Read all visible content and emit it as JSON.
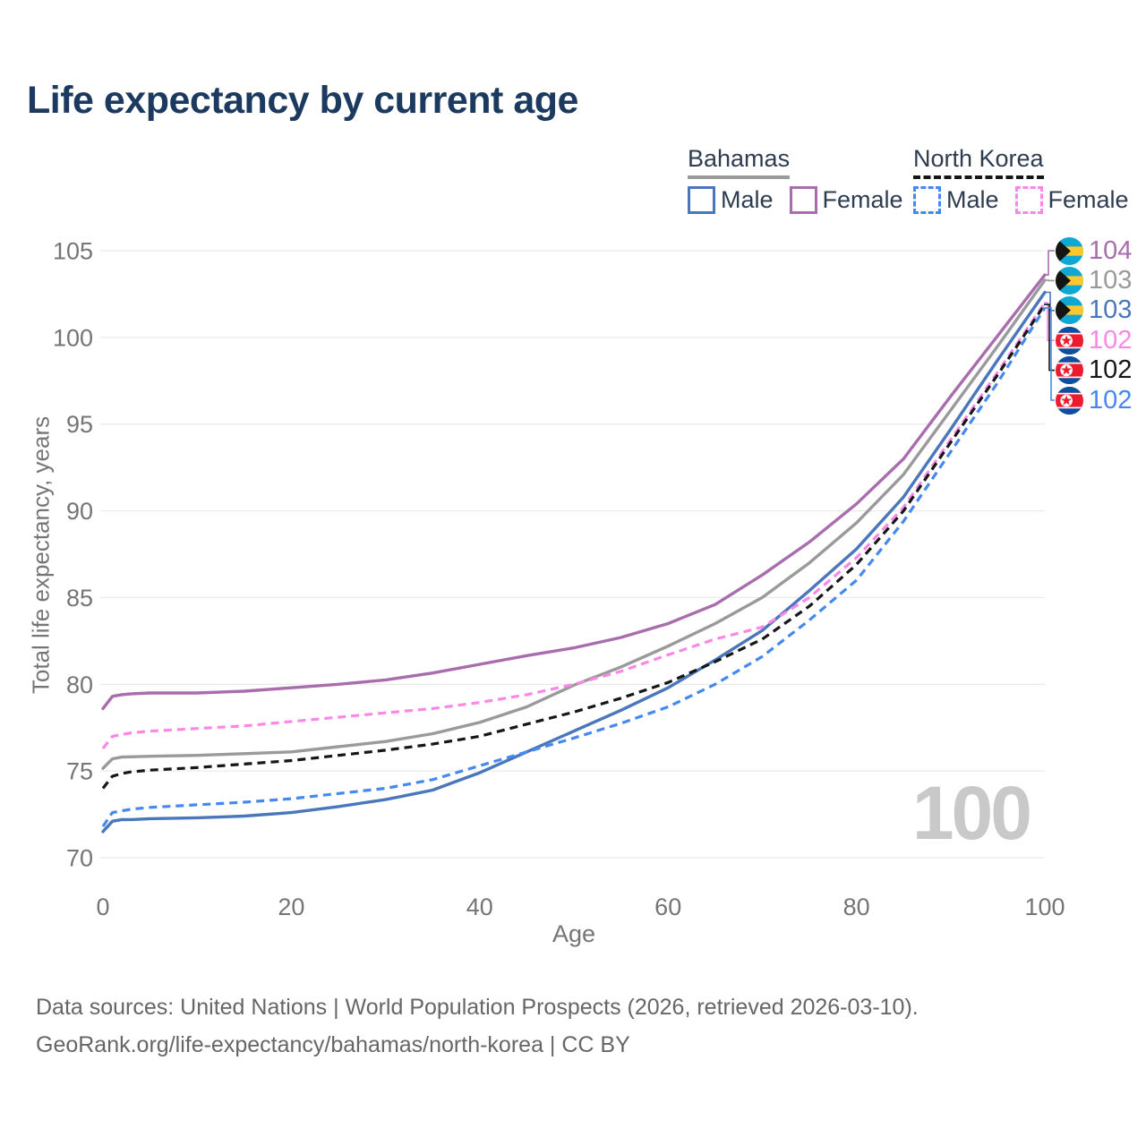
{
  "chart_data": {
    "type": "line",
    "title": "Life expectancy by current age",
    "xlabel": "Age",
    "ylabel": "Total life expectancy, years",
    "xlim": [
      0,
      100
    ],
    "ylim": [
      70,
      105
    ],
    "x_ticks": [
      0,
      20,
      40,
      60,
      80,
      100
    ],
    "y_ticks": [
      70,
      75,
      80,
      85,
      90,
      95,
      100,
      105
    ],
    "grid": "horizontal",
    "legend_position": "top-right",
    "watermark": "100",
    "series": [
      {
        "name": "Bahamas Female",
        "country": "Bahamas",
        "sex": "Female",
        "color": "#a96dae",
        "dash": false,
        "flag": "bahamas-flag-icon",
        "end_label": "104",
        "points": [
          [
            0,
            78.6
          ],
          [
            1,
            79.3
          ],
          [
            2,
            79.4
          ],
          [
            3,
            79.45
          ],
          [
            5,
            79.5
          ],
          [
            10,
            79.5
          ],
          [
            15,
            79.6
          ],
          [
            20,
            79.8
          ],
          [
            25,
            80.0
          ],
          [
            30,
            80.25
          ],
          [
            35,
            80.65
          ],
          [
            40,
            81.15
          ],
          [
            45,
            81.65
          ],
          [
            50,
            82.1
          ],
          [
            55,
            82.7
          ],
          [
            60,
            83.5
          ],
          [
            65,
            84.6
          ],
          [
            70,
            86.3
          ],
          [
            75,
            88.2
          ],
          [
            80,
            90.4
          ],
          [
            85,
            93.0
          ],
          [
            90,
            96.6
          ],
          [
            95,
            100.1
          ],
          [
            100,
            103.6
          ]
        ]
      },
      {
        "name": "Bahamas",
        "country": "Bahamas",
        "sex": "Both sexes",
        "color": "#9a9a9a",
        "dash": false,
        "flag": "bahamas-flag-icon",
        "end_label": "103",
        "points": [
          [
            0,
            75.15
          ],
          [
            1,
            75.7
          ],
          [
            2,
            75.8
          ],
          [
            3,
            75.82
          ],
          [
            5,
            75.85
          ],
          [
            10,
            75.9
          ],
          [
            15,
            76.0
          ],
          [
            20,
            76.1
          ],
          [
            25,
            76.4
          ],
          [
            30,
            76.7
          ],
          [
            35,
            77.15
          ],
          [
            40,
            77.8
          ],
          [
            45,
            78.7
          ],
          [
            50,
            79.95
          ],
          [
            55,
            81.0
          ],
          [
            60,
            82.2
          ],
          [
            65,
            83.5
          ],
          [
            70,
            85.0
          ],
          [
            75,
            87.0
          ],
          [
            80,
            89.3
          ],
          [
            85,
            92.1
          ],
          [
            90,
            95.8
          ],
          [
            95,
            99.5
          ],
          [
            100,
            103.3
          ]
        ]
      },
      {
        "name": "Bahamas Male",
        "country": "Bahamas",
        "sex": "Male",
        "color": "#4a77bb",
        "dash": false,
        "flag": "bahamas-flag-icon",
        "end_label": "103",
        "points": [
          [
            0,
            71.5
          ],
          [
            1,
            72.1
          ],
          [
            2,
            72.2
          ],
          [
            3,
            72.2
          ],
          [
            5,
            72.25
          ],
          [
            10,
            72.3
          ],
          [
            15,
            72.4
          ],
          [
            20,
            72.6
          ],
          [
            25,
            72.95
          ],
          [
            30,
            73.35
          ],
          [
            35,
            73.9
          ],
          [
            40,
            74.9
          ],
          [
            45,
            76.1
          ],
          [
            50,
            77.3
          ],
          [
            55,
            78.5
          ],
          [
            60,
            79.8
          ],
          [
            65,
            81.4
          ],
          [
            70,
            83.1
          ],
          [
            75,
            85.4
          ],
          [
            80,
            87.8
          ],
          [
            85,
            90.8
          ],
          [
            90,
            94.7
          ],
          [
            95,
            98.7
          ],
          [
            100,
            102.6
          ]
        ]
      },
      {
        "name": "North Korea Female",
        "country": "North Korea",
        "sex": "Female",
        "color": "#fb87e7",
        "dash": true,
        "flag": "north-korea-flag-icon",
        "end_label": "102",
        "points": [
          [
            0,
            76.3
          ],
          [
            1,
            77.0
          ],
          [
            2,
            77.1
          ],
          [
            3,
            77.2
          ],
          [
            5,
            77.3
          ],
          [
            10,
            77.45
          ],
          [
            15,
            77.6
          ],
          [
            20,
            77.85
          ],
          [
            25,
            78.1
          ],
          [
            30,
            78.35
          ],
          [
            35,
            78.6
          ],
          [
            40,
            78.95
          ],
          [
            45,
            79.4
          ],
          [
            50,
            80.0
          ],
          [
            55,
            80.75
          ],
          [
            60,
            81.7
          ],
          [
            65,
            82.6
          ],
          [
            70,
            83.3
          ],
          [
            75,
            85.0
          ],
          [
            80,
            87.3
          ],
          [
            85,
            90.2
          ],
          [
            90,
            94.1
          ],
          [
            95,
            98.0
          ],
          [
            100,
            102.0
          ]
        ]
      },
      {
        "name": "North Korea",
        "country": "North Korea",
        "sex": "Both sexes",
        "color": "#161616",
        "dash": true,
        "flag": "north-korea-flag-icon",
        "end_label": "102",
        "points": [
          [
            0,
            74.0
          ],
          [
            1,
            74.7
          ],
          [
            2,
            74.85
          ],
          [
            3,
            74.95
          ],
          [
            5,
            75.05
          ],
          [
            10,
            75.2
          ],
          [
            15,
            75.4
          ],
          [
            20,
            75.6
          ],
          [
            25,
            75.9
          ],
          [
            30,
            76.2
          ],
          [
            35,
            76.55
          ],
          [
            40,
            77.0
          ],
          [
            45,
            77.7
          ],
          [
            50,
            78.4
          ],
          [
            55,
            79.2
          ],
          [
            60,
            80.1
          ],
          [
            65,
            81.3
          ],
          [
            70,
            82.6
          ],
          [
            75,
            84.5
          ],
          [
            80,
            86.9
          ],
          [
            85,
            90.0
          ],
          [
            90,
            93.95
          ],
          [
            95,
            97.85
          ],
          [
            100,
            101.9
          ]
        ]
      },
      {
        "name": "North Korea Male",
        "country": "North Korea",
        "sex": "Male",
        "color": "#4488f0",
        "dash": true,
        "flag": "north-korea-flag-icon",
        "end_label": "102",
        "points": [
          [
            0,
            71.8
          ],
          [
            1,
            72.6
          ],
          [
            2,
            72.7
          ],
          [
            3,
            72.8
          ],
          [
            5,
            72.9
          ],
          [
            10,
            73.05
          ],
          [
            15,
            73.2
          ],
          [
            20,
            73.4
          ],
          [
            25,
            73.7
          ],
          [
            30,
            74.0
          ],
          [
            35,
            74.5
          ],
          [
            40,
            75.3
          ],
          [
            45,
            76.1
          ],
          [
            50,
            76.9
          ],
          [
            55,
            77.75
          ],
          [
            60,
            78.7
          ],
          [
            65,
            80.0
          ],
          [
            70,
            81.6
          ],
          [
            75,
            83.7
          ],
          [
            80,
            86.0
          ],
          [
            85,
            89.4
          ],
          [
            90,
            93.4
          ],
          [
            95,
            97.4
          ],
          [
            100,
            101.7
          ]
        ]
      }
    ]
  },
  "legend": {
    "groups": [
      {
        "name": "Bahamas",
        "items": [
          {
            "label": "Male"
          },
          {
            "label": "Female"
          }
        ]
      },
      {
        "name": "North Korea",
        "items": [
          {
            "label": "Male"
          },
          {
            "label": "Female"
          }
        ]
      }
    ]
  },
  "footer": {
    "line1": "Data sources: United Nations | World Population Prospects (2026, retrieved 2026-03-10).",
    "line2": "GeoRank.org/life-expectancy/bahamas/north-korea | CC BY"
  },
  "colors": {
    "title": "#1c3a5f",
    "axis_text": "#757575",
    "grid": "#ebebeb",
    "watermark": "#c9c9c9",
    "footer_text": "#666666",
    "legend_text": "#2e3c50"
  }
}
